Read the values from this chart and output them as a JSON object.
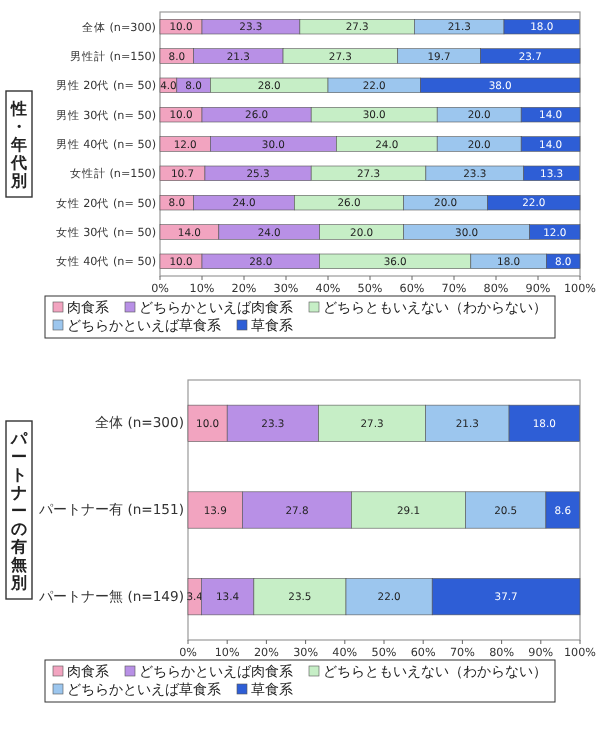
{
  "chart_data": [
    {
      "type": "bar",
      "orientation": "horizontal",
      "stacked": true,
      "ylabel": "性・年代別",
      "categories": [
        "全体 (n=300)",
        "男性計 (n=150)",
        "男性 20代 (n= 50)",
        "男性 30代 (n= 50)",
        "男性 40代 (n= 50)",
        "女性計 (n=150)",
        "女性 20代 (n= 50)",
        "女性 30代 (n= 50)",
        "女性 40代 (n= 50)"
      ],
      "series": [
        {
          "name": "肉食系",
          "color": "#f2a4c0",
          "values": [
            10.0,
            8.0,
            4.0,
            10.0,
            12.0,
            10.7,
            8.0,
            14.0,
            10.0
          ],
          "value_labels": [
            "10.0",
            "8.0",
            "4.0",
            "10.0",
            "12.0",
            "10.7",
            "8.0",
            "14.0",
            "10.0"
          ]
        },
        {
          "name": "どちらかといえば肉食系",
          "color": "#b890e6",
          "values": [
            23.3,
            21.3,
            8.0,
            26.0,
            30.0,
            25.3,
            24.0,
            24.0,
            28.0
          ],
          "value_labels": [
            "23.3",
            "21.3",
            "8.0",
            "26.0",
            "30.0",
            "25.3",
            "24.0",
            "24.0",
            "28.0"
          ]
        },
        {
          "name": "どちらともいえない（わからない）",
          "color": "#c6eec6",
          "values": [
            27.3,
            27.3,
            28.0,
            30.0,
            24.0,
            27.3,
            26.0,
            20.0,
            36.0
          ],
          "value_labels": [
            "27.3",
            "27.3",
            "28.0",
            "30.0",
            "24.0",
            "27.3",
            "26.0",
            "20.0",
            "36.0"
          ]
        },
        {
          "name": "どちらかといえば草食系",
          "color": "#9cc6ee",
          "values": [
            21.3,
            19.7,
            22.0,
            20.0,
            20.0,
            23.3,
            20.0,
            30.0,
            18.0
          ],
          "value_labels": [
            "21.3",
            "19.7",
            "22.0",
            "20.0",
            "20.0",
            "23.3",
            "20.0",
            "30.0",
            "18.0"
          ]
        },
        {
          "name": "草食系",
          "color": "#2e5ed6",
          "values": [
            18.0,
            23.7,
            38.0,
            14.0,
            14.0,
            13.3,
            22.0,
            12.0,
            8.0
          ],
          "value_labels": [
            "18.0",
            "23.7",
            "38.0",
            "14.0",
            "14.0",
            "13.3",
            "22.0",
            "12.0",
            "8.0"
          ]
        }
      ],
      "xlim": [
        0,
        100
      ],
      "xticks": [
        {
          "value": 0,
          "label": "0%"
        },
        {
          "value": 10,
          "label": "10%"
        },
        {
          "value": 20,
          "label": "20%"
        },
        {
          "value": 30,
          "label": "30%"
        },
        {
          "value": 40,
          "label": "40%"
        },
        {
          "value": 50,
          "label": "50%"
        },
        {
          "value": 60,
          "label": "60%"
        },
        {
          "value": 70,
          "label": "70%"
        },
        {
          "value": 80,
          "label": "80%"
        },
        {
          "value": 90,
          "label": "90%"
        },
        {
          "value": 100,
          "label": "100%"
        }
      ],
      "legend": "bottom",
      "grid": false
    },
    {
      "type": "bar",
      "orientation": "horizontal",
      "stacked": true,
      "ylabel": "パートナーの有無別",
      "categories": [
        "全体 (n=300)",
        "パートナー有 (n=151)",
        "パートナー無 (n=149)"
      ],
      "series": [
        {
          "name": "肉食系",
          "color": "#f2a4c0",
          "values": [
            10.0,
            13.9,
            3.4
          ],
          "value_labels": [
            "10.0",
            "13.9",
            "3.4"
          ]
        },
        {
          "name": "どちらかといえば肉食系",
          "color": "#b890e6",
          "values": [
            23.3,
            27.8,
            13.4
          ],
          "value_labels": [
            "23.3",
            "27.8",
            "13.4"
          ]
        },
        {
          "name": "どちらともいえない（わからない）",
          "color": "#c6eec6",
          "values": [
            27.3,
            29.1,
            23.5
          ],
          "value_labels": [
            "27.3",
            "29.1",
            "23.5"
          ]
        },
        {
          "name": "どちらかといえば草食系",
          "color": "#9cc6ee",
          "values": [
            21.3,
            20.5,
            22.0
          ],
          "value_labels": [
            "21.3",
            "20.5",
            "22.0"
          ]
        },
        {
          "name": "草食系",
          "color": "#2e5ed6",
          "values": [
            18.0,
            8.6,
            37.7
          ],
          "value_labels": [
            "18.0",
            "8.6",
            "37.7"
          ]
        }
      ],
      "xlim": [
        0,
        100
      ],
      "xticks": [
        {
          "value": 0,
          "label": "0%"
        },
        {
          "value": 10,
          "label": "10%"
        },
        {
          "value": 20,
          "label": "20%"
        },
        {
          "value": 30,
          "label": "30%"
        },
        {
          "value": 40,
          "label": "40%"
        },
        {
          "value": 50,
          "label": "50%"
        },
        {
          "value": 60,
          "label": "60%"
        },
        {
          "value": 70,
          "label": "70%"
        },
        {
          "value": 80,
          "label": "80%"
        },
        {
          "value": 90,
          "label": "90%"
        },
        {
          "value": 100,
          "label": "100%"
        }
      ],
      "legend": "bottom",
      "grid": false
    }
  ]
}
